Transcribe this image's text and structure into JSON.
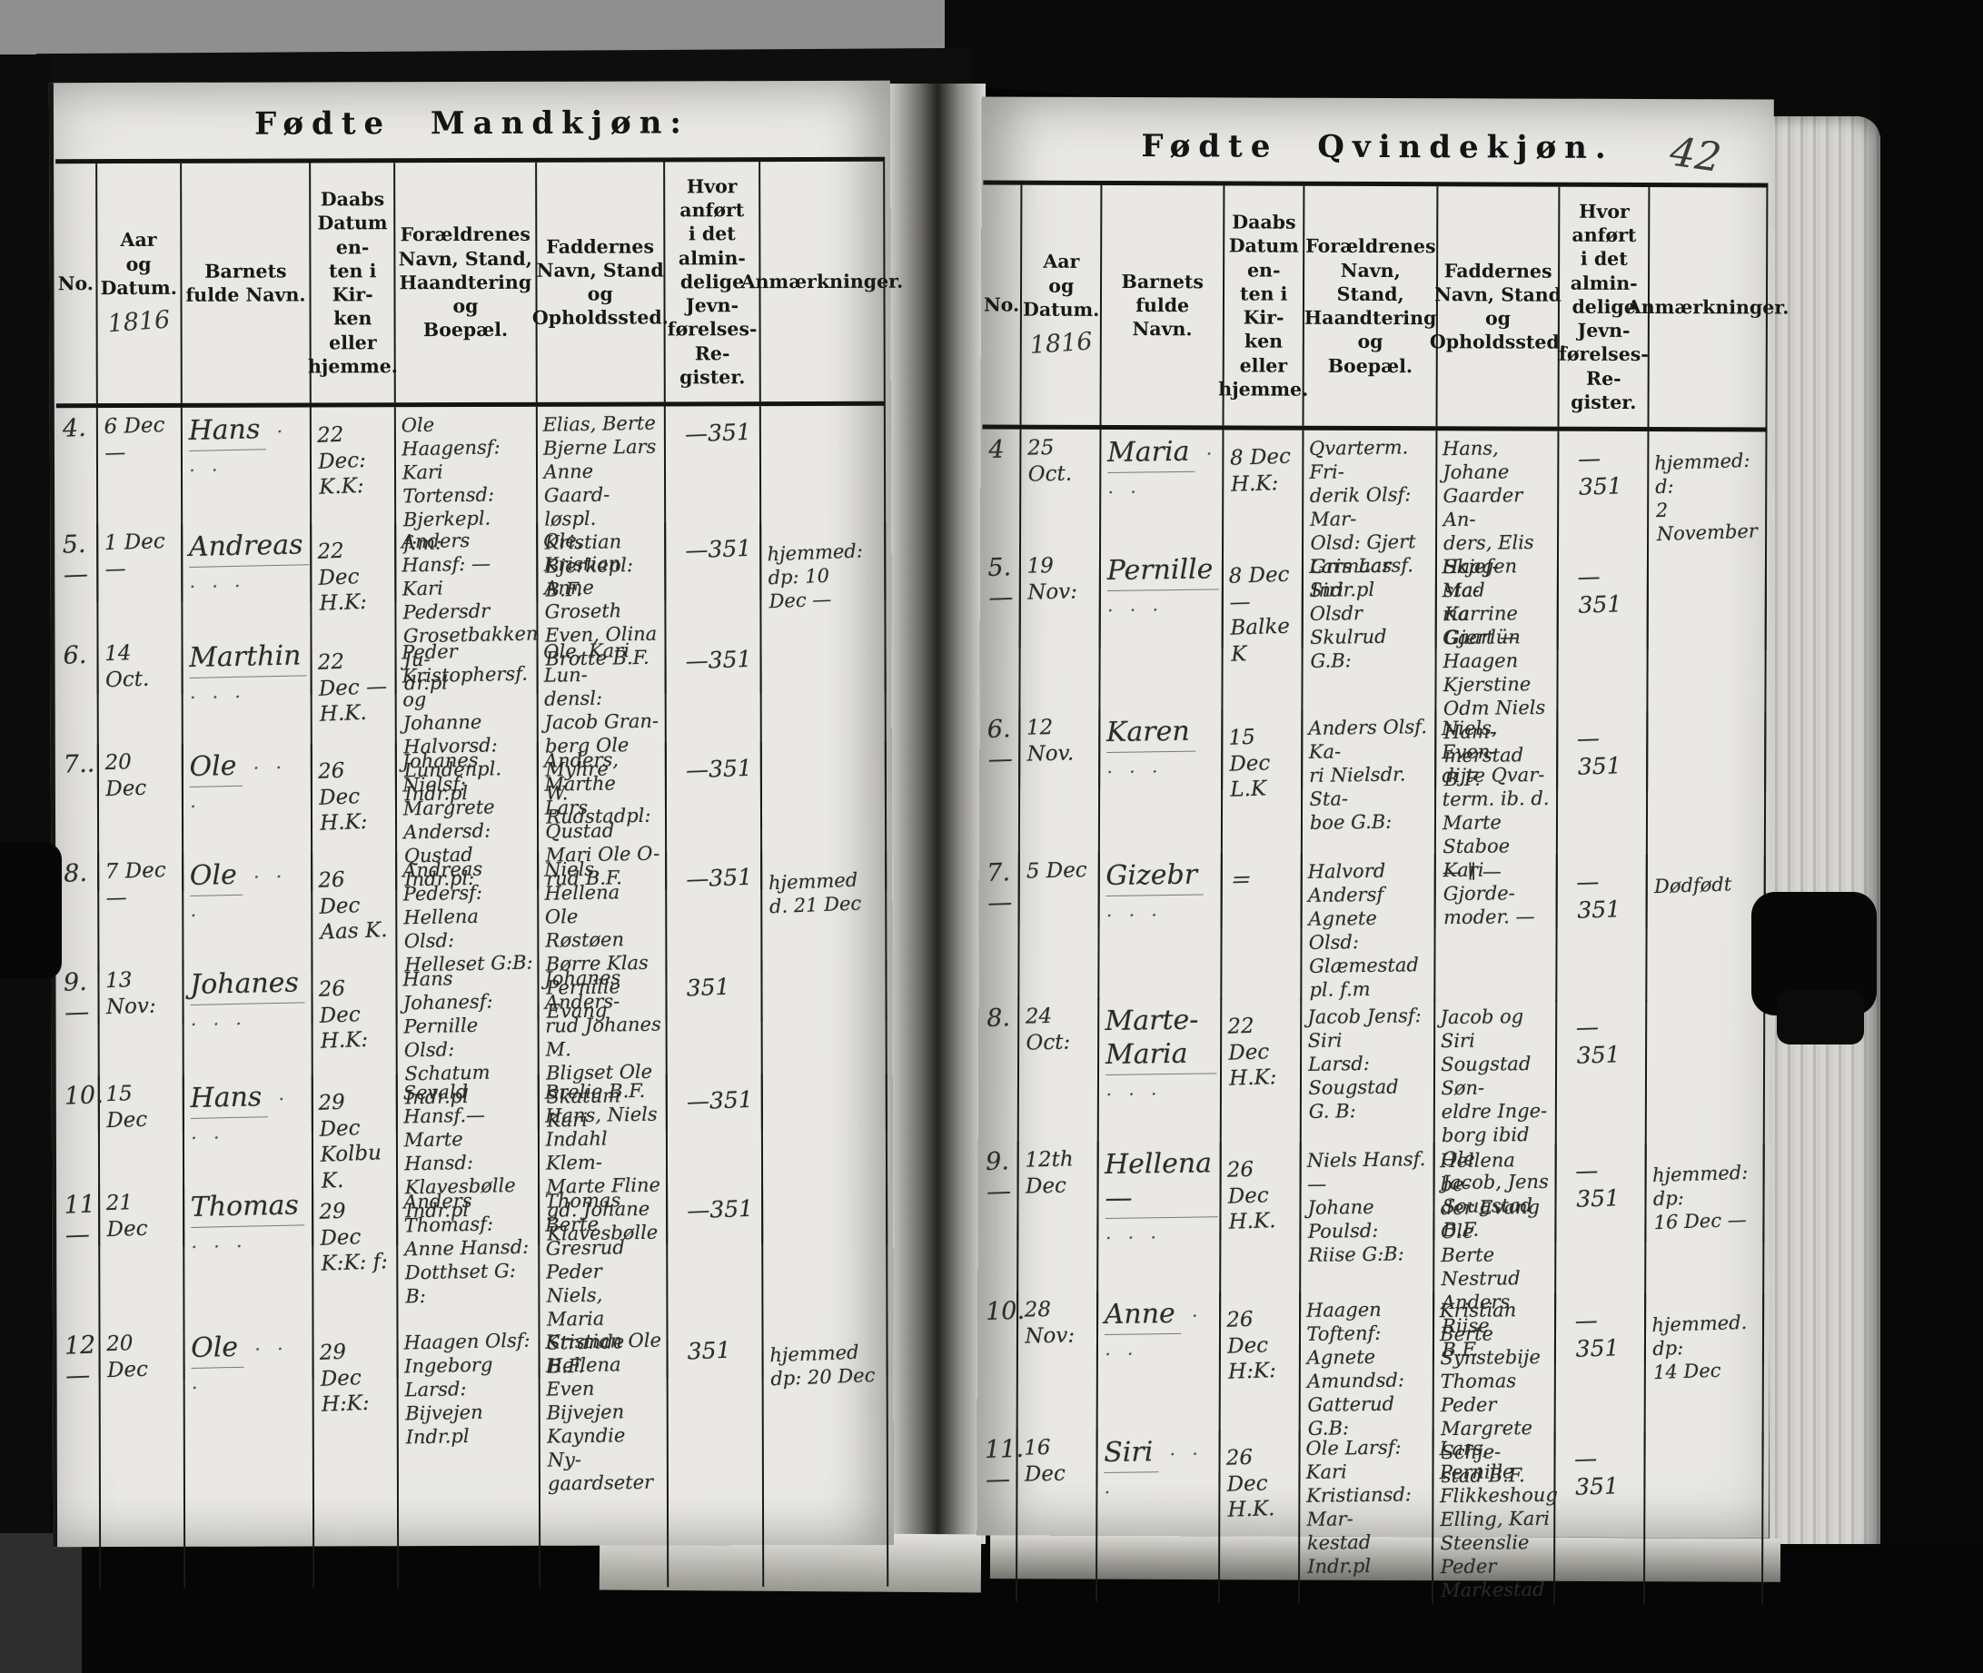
{
  "photo": {
    "background_color": "#8f8f8f",
    "cover_color": "#0a0a0a",
    "page_color": "#e9e8e4",
    "ink_color": "#2b2b2b",
    "register_year": "1816"
  },
  "columns": [
    "No.",
    "Aar\nog\nDatum.",
    "Barnets\nfulde Navn.",
    "Daabs\nDatum en-\nten i Kir-\nken eller\nhjemme.",
    "Forældrenes\nNavn, Stand,\nHaandtering og\nBoepæl.",
    "Faddernes\nNavn, Stand\nog Opholdssted.",
    "Hvor anført\ni det almin-\ndelige Jevn-\nførelses-Re-\ngister.",
    "Anmærkninger."
  ],
  "left_page": {
    "title": "Fødte Mandkjøn:",
    "year": "1816",
    "rows": [
      {
        "no": "4.",
        "date": "6 Dec —",
        "name": "Hans",
        "baptism": "22 Dec:\nK.K:",
        "parents": "Ole Haagensf:\nKari Tortensd:\nBjerkepl.  f:m:",
        "godparents": "Elias, Berte\nBjerne Lars\nAnne Gaard-\nløspl. Kristian\nBjerkepl: B.F.",
        "register": "—351",
        "remarks": ""
      },
      {
        "no": "5.—",
        "date": "1 Dec —",
        "name": "Andreas",
        "baptism": "22 Dec\nH.K:",
        "parents": "Anders Hansf: —\nKari Pedersdr\nGrosetbakken Ju-\ndr.pl",
        "godparents": "Ole, Kristian\nAnne Groseth\nEven, Olina\nBrotte B.F.",
        "register": "—351",
        "remarks": "hjemmed: dp: 10\nDec —"
      },
      {
        "no": "6.",
        "date": "14 Oct.",
        "name": "Marthin",
        "baptism": "22 Dec —\nH.K.",
        "parents": "Peder Kristophersf. og\nJohanne Halvorsd:\nLundenpl. Indr.pl",
        "godparents": "Ole, Kari Lun-\ndensl: Jacob Gran-\nberg Ole Myhre\nW. Rudstadpl:",
        "register": "—351",
        "remarks": ""
      },
      {
        "no": "7..",
        "date": "20 Dec",
        "name": "Ole",
        "baptism": "26 Dec\nH.K:",
        "parents": "Johanes Nielsf:\nMargrete Andersd:\nQustad Indr.pl:",
        "godparents": "Anders, Marthe\nLars Qustad\nMari Ole O-\nrud   B.F.",
        "register": "—351",
        "remarks": ""
      },
      {
        "no": "8.",
        "date": "7 Dec —",
        "name": "Ole",
        "baptism": "26 Dec\nAas K.",
        "parents": "Andreas Pedersf:\nHellena Olsd:\nHelleset G:B:",
        "godparents": "Niels, Hellena\nOle Røstøen\nBørre Klas\nPernille Evang",
        "register": "—351",
        "remarks": "hjemmed\nd. 21 Dec"
      },
      {
        "no": "9.—",
        "date": "13 Nov:",
        "name": "Johanes",
        "baptism": "26 Dec\nH.K:",
        "parents": "Hans Johanesf:\nPernille Olsd:\nSchatum Indr.pl",
        "godparents": "Johanes Anders-\nrud Johanes M.\nBligset Ole\nSkatum Kari",
        "register": "351",
        "remarks": ""
      },
      {
        "no": "10.",
        "date": "15 Dec",
        "name": "Hans",
        "baptism": "29 Dec\nKolbu K.",
        "parents": "Sevald Hansf.—\nMarte Hansd:\nKlavesbølle Indr.pl",
        "godparents": "Brelie B.F.\nHans, Niels\nIndahl Klem-\nMarte Fline\ngd. Johane\nKlavesbølle",
        "register": "—351",
        "remarks": ""
      },
      {
        "no": "11—",
        "date": "21 Dec",
        "name": "Thomas",
        "baptism": "29 Dec\nK:K: f:",
        "parents": "Anders Thomasf:\nAnne Hansd:\nDotthset G: B:",
        "godparents": "Thomas Berte\nGresrud Peder\nNiels, Maria\nStrande B.F.",
        "register": "—351",
        "remarks": ""
      },
      {
        "no": "12—",
        "date": "20 Dec",
        "name": "Ole",
        "baptism": "29 Dec\nH:K:",
        "parents": "Haagen Olsf:\nIngeborg Larsd:\nBijvejen Indr.pl",
        "godparents": "Kristian Ole\nHellena Even\nBijvejen\nKayndie Ny-\ngaardseter",
        "register": "351",
        "remarks": "hjemmed\ndp: 20 Dec"
      }
    ]
  },
  "right_page": {
    "title": "Fødte Qvindekjøn.",
    "page_number": "42",
    "year": "1816",
    "rows": [
      {
        "no": "4",
        "date": "25 Oct.",
        "name": "Maria",
        "baptism": "8 Dec\nH.K:",
        "parents": "Qvarterm. Fri-\nderik Olsf: Mar-\nOlsd: Gjert\nGrimaas Indr.pl",
        "godparents": "Hans, Johane\nGaarder An-\nders, Elis Skjef-\nstad Karrine\nGjert —",
        "register": "—351",
        "remarks": "hjemmed: d:\n2 November"
      },
      {
        "no": "5.—",
        "date": "19 Nov:",
        "name": "Pernille",
        "baptism": "8 Dec —\nBalke K",
        "parents": "Lars Larsf. Siri\nOlsdr  Skulrud\nG.B:",
        "godparents": "Haagen Ma-\nria Gaarlün\nHaagen Kjerstine\nOdm Niels Ham-\nmerstad B.F.",
        "register": "—351",
        "remarks": ""
      },
      {
        "no": "6.—",
        "date": "12 Nov.",
        "name": "Karen",
        "baptism": "15 Dec\nL.K",
        "parents": "Anders Olsf. Ka-\nri Nielsdr. Sta-\nboe  G.B:",
        "godparents": "Niels, Even-\ndijte Qvar-\nterm. ib. d.\nMarte Staboe\nKari Gjorde-\nmoder. —",
        "register": "—351",
        "remarks": ""
      },
      {
        "no": "7. —",
        "date": "5 Dec",
        "name": "Gizebr",
        "baptism": "＝",
        "parents": "Halvord Andersf\nAgnete Olsd:\nGlæmestad pl. f.m",
        "godparents": "— ∥ —",
        "register": "—351",
        "remarks": "Dødfødt"
      },
      {
        "no": "8.",
        "date": "24 Oct:",
        "name": "Marte-Maria",
        "baptism": "22 Dec\nH.K:",
        "parents": "Jacob Jensf: Siri\nLarsd: Sougstad\nG. B:",
        "godparents": "Jacob og Siri\nSougstad Søn-\neldre Inge-\nborg ibid Ole\nJacob, Jens\nSougstad B.F.",
        "register": "—351",
        "remarks": ""
      },
      {
        "no": "9.—",
        "date": "12th Dec",
        "name": "Hellena —",
        "baptism": "26 Dec\nH.K.",
        "parents": "Niels Hansf.—\nJohane Poulsd:\nRiise G:B:",
        "godparents": "Hellena be-\nder Evang Ole\nBerte Nestrud\nAnders Riise\nB.F.",
        "register": "—351",
        "remarks": "hjemmed: dp:\n16 Dec —"
      },
      {
        "no": "10.",
        "date": "28 Nov:",
        "name": "Anne",
        "baptism": "26 Dec\nH:K:",
        "parents": "Haagen Toftenf:\nAgnete Amundsd:\nGatterud G.B:",
        "godparents": "Kristian Berte\nSynstebije\nThomas Peder\nMargrete Schje-\nstad B.F.",
        "register": "—351",
        "remarks": "hjemmed. dp:\n14 Dec"
      },
      {
        "no": "11.—",
        "date": "16 Dec",
        "name": "Siri",
        "baptism": "26 Dec\nH.K.",
        "parents": "Ole Larsf: Kari\nKristiansd: Mar-\nkestad Indr.pl",
        "godparents": "Lars, Pernille\nFlikkeshoug\nElling, Kari\nSteenslie Peder\nMarkestad",
        "register": "—351",
        "remarks": ""
      }
    ]
  }
}
